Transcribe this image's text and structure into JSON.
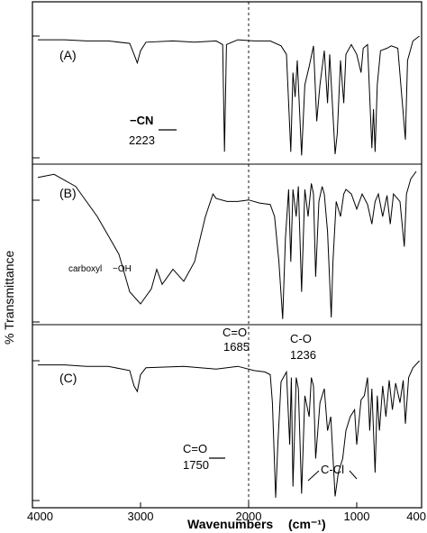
{
  "chart_data": {
    "type": "line",
    "xlabel": "Wavenumbers",
    "xlabel_unit": "(cm⁻¹)",
    "ylabel": "% Transmittance",
    "x_reversed": true,
    "xlim": [
      4000,
      400
    ],
    "x_ticks": [
      4000,
      3000,
      2000,
      1000,
      400
    ],
    "x_tick_labels": [
      "4000",
      "3000",
      "2000",
      "1000",
      "400"
    ],
    "reference_line_x": 2000,
    "panels": [
      {
        "label": "(A)",
        "annotations": [
          {
            "text": "−CN",
            "x": 2223
          },
          {
            "text": "2223",
            "x": 2223
          }
        ],
        "spectrum": [
          [
            3950,
            97
          ],
          [
            3700,
            97
          ],
          [
            3500,
            96
          ],
          [
            3300,
            96
          ],
          [
            3100,
            94
          ],
          [
            3060,
            85
          ],
          [
            3030,
            78
          ],
          [
            3000,
            88
          ],
          [
            2950,
            95
          ],
          [
            2700,
            96
          ],
          [
            2500,
            95
          ],
          [
            2300,
            96
          ],
          [
            2240,
            93
          ],
          [
            2223,
            5
          ],
          [
            2205,
            93
          ],
          [
            2100,
            97
          ],
          [
            1950,
            96
          ],
          [
            1800,
            96
          ],
          [
            1700,
            92
          ],
          [
            1650,
            85
          ],
          [
            1610,
            5
          ],
          [
            1590,
            70
          ],
          [
            1570,
            50
          ],
          [
            1550,
            80
          ],
          [
            1510,
            2
          ],
          [
            1480,
            60
          ],
          [
            1440,
            75
          ],
          [
            1400,
            92
          ],
          [
            1370,
            30
          ],
          [
            1340,
            60
          ],
          [
            1300,
            88
          ],
          [
            1270,
            45
          ],
          [
            1250,
            85
          ],
          [
            1200,
            3
          ],
          [
            1180,
            20
          ],
          [
            1150,
            80
          ],
          [
            1120,
            45
          ],
          [
            1100,
            85
          ],
          [
            1050,
            93
          ],
          [
            1000,
            85
          ],
          [
            960,
            70
          ],
          [
            940,
            90
          ],
          [
            900,
            93
          ],
          [
            860,
            8
          ],
          [
            845,
            40
          ],
          [
            830,
            5
          ],
          [
            810,
            60
          ],
          [
            780,
            88
          ],
          [
            720,
            90
          ],
          [
            680,
            92
          ],
          [
            620,
            90
          ],
          [
            550,
            15
          ],
          [
            530,
            80
          ],
          [
            480,
            96
          ],
          [
            420,
            100
          ]
        ]
      },
      {
        "label": "(B)",
        "annotations": [
          {
            "text": "carboxyl",
            "x": 3250
          },
          {
            "text": "−OH",
            "x": 2950
          },
          {
            "text": "C=O",
            "x": 1685
          },
          {
            "text": "1685",
            "x": 1685
          },
          {
            "text": "C-O",
            "x": 1236
          },
          {
            "text": "1236",
            "x": 1236
          }
        ],
        "spectrum": [
          [
            3950,
            96
          ],
          [
            3800,
            98
          ],
          [
            3600,
            90
          ],
          [
            3400,
            70
          ],
          [
            3200,
            45
          ],
          [
            3100,
            20
          ],
          [
            3000,
            12
          ],
          [
            2900,
            22
          ],
          [
            2850,
            35
          ],
          [
            2800,
            25
          ],
          [
            2700,
            35
          ],
          [
            2600,
            27
          ],
          [
            2500,
            40
          ],
          [
            2400,
            70
          ],
          [
            2330,
            85
          ],
          [
            2300,
            82
          ],
          [
            2200,
            80
          ],
          [
            2100,
            80
          ],
          [
            2000,
            81
          ],
          [
            1900,
            79
          ],
          [
            1800,
            78
          ],
          [
            1760,
            70
          ],
          [
            1720,
            40
          ],
          [
            1685,
            2
          ],
          [
            1660,
            55
          ],
          [
            1630,
            88
          ],
          [
            1610,
            40
          ],
          [
            1590,
            88
          ],
          [
            1560,
            70
          ],
          [
            1540,
            90
          ],
          [
            1510,
            20
          ],
          [
            1480,
            88
          ],
          [
            1450,
            70
          ],
          [
            1420,
            92
          ],
          [
            1400,
            85
          ],
          [
            1380,
            30
          ],
          [
            1350,
            80
          ],
          [
            1320,
            90
          ],
          [
            1300,
            85
          ],
          [
            1270,
            60
          ],
          [
            1236,
            3
          ],
          [
            1220,
            40
          ],
          [
            1190,
            80
          ],
          [
            1150,
            70
          ],
          [
            1120,
            85
          ],
          [
            1100,
            88
          ],
          [
            1050,
            85
          ],
          [
            1000,
            75
          ],
          [
            950,
            85
          ],
          [
            900,
            78
          ],
          [
            860,
            65
          ],
          [
            830,
            80
          ],
          [
            800,
            85
          ],
          [
            760,
            70
          ],
          [
            720,
            84
          ],
          [
            690,
            65
          ],
          [
            660,
            85
          ],
          [
            600,
            80
          ],
          [
            560,
            50
          ],
          [
            540,
            85
          ],
          [
            500,
            95
          ],
          [
            450,
            100
          ]
        ]
      },
      {
        "label": "(C)",
        "annotations": [
          {
            "text": "C=O",
            "x": 1750
          },
          {
            "text": "1750",
            "x": 1750
          },
          {
            "text": "C-Cl",
            "x": 1000
          }
        ],
        "spectrum": [
          [
            3950,
            97
          ],
          [
            3700,
            97
          ],
          [
            3500,
            96
          ],
          [
            3300,
            96
          ],
          [
            3100,
            93
          ],
          [
            3060,
            82
          ],
          [
            3030,
            78
          ],
          [
            3000,
            90
          ],
          [
            2950,
            95
          ],
          [
            2600,
            96
          ],
          [
            2300,
            94
          ],
          [
            2100,
            96
          ],
          [
            1950,
            93
          ],
          [
            1850,
            92
          ],
          [
            1800,
            90
          ],
          [
            1780,
            70
          ],
          [
            1750,
            2
          ],
          [
            1730,
            40
          ],
          [
            1700,
            85
          ],
          [
            1650,
            92
          ],
          [
            1620,
            40
          ],
          [
            1605,
            88
          ],
          [
            1590,
            10
          ],
          [
            1560,
            88
          ],
          [
            1540,
            80
          ],
          [
            1510,
            5
          ],
          [
            1480,
            75
          ],
          [
            1440,
            60
          ],
          [
            1420,
            88
          ],
          [
            1400,
            82
          ],
          [
            1380,
            30
          ],
          [
            1340,
            70
          ],
          [
            1300,
            80
          ],
          [
            1270,
            50
          ],
          [
            1240,
            60
          ],
          [
            1200,
            3
          ],
          [
            1170,
            20
          ],
          [
            1130,
            30
          ],
          [
            1100,
            50
          ],
          [
            1060,
            60
          ],
          [
            1020,
            65
          ],
          [
            1000,
            40
          ],
          [
            960,
            72
          ],
          [
            930,
            75
          ],
          [
            900,
            88
          ],
          [
            880,
            50
          ],
          [
            860,
            80
          ],
          [
            830,
            20
          ],
          [
            810,
            75
          ],
          [
            790,
            50
          ],
          [
            760,
            82
          ],
          [
            730,
            60
          ],
          [
            700,
            86
          ],
          [
            670,
            65
          ],
          [
            640,
            84
          ],
          [
            600,
            70
          ],
          [
            570,
            86
          ],
          [
            550,
            55
          ],
          [
            520,
            88
          ],
          [
            480,
            95
          ],
          [
            420,
            100
          ]
        ]
      }
    ]
  }
}
